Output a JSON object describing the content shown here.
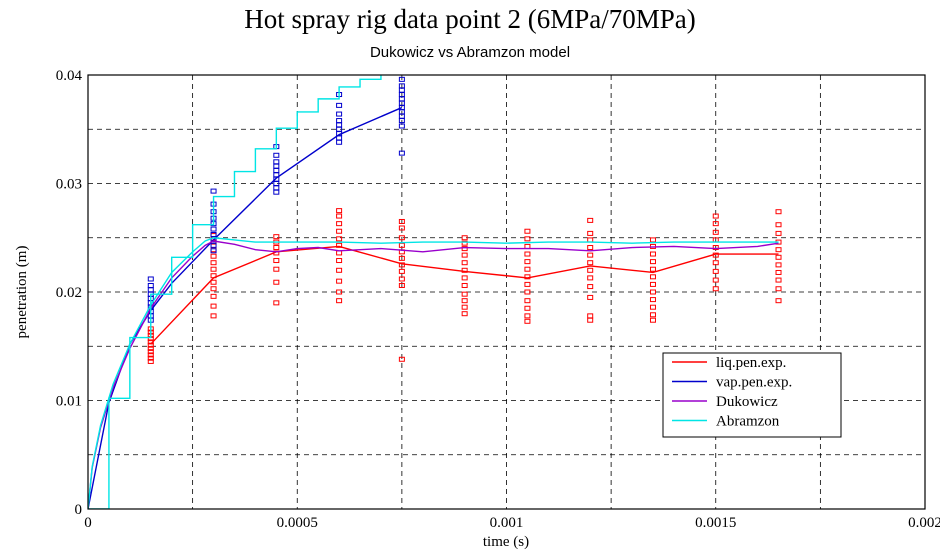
{
  "chart_data": {
    "type": "line",
    "title": "Hot spray rig data point 2 (6MPa/70MPa)",
    "subtitle": "Dukowicz vs Abramzon model",
    "xlabel": "time (s)",
    "ylabel": "penetration (m)",
    "xlim": [
      0,
      0.002
    ],
    "ylim": [
      0,
      0.04
    ],
    "xticks": [
      0,
      0.0005,
      0.001,
      0.0015,
      0.002
    ],
    "xtick_labels": [
      "0",
      "0.0005",
      "0.001",
      "0.0015",
      "0.002"
    ],
    "yticks": [
      0,
      0.01,
      0.02,
      0.03,
      0.04
    ],
    "ytick_labels": [
      "0",
      "0.01",
      "0.02",
      "0.03",
      "0.04"
    ],
    "grid": true,
    "legend_position": "lower-right",
    "series": [
      {
        "name": "liq.pen.exp.",
        "color": "#ff0000",
        "style": "line+square-markers",
        "x": [
          0.00015,
          0.0003,
          0.00045,
          0.0006,
          0.00075,
          0.0009,
          0.00105,
          0.0012,
          0.00135,
          0.0015,
          0.00165
        ],
        "y": [
          0.0152,
          0.0213,
          0.0237,
          0.0242,
          0.0226,
          0.0219,
          0.0213,
          0.0224,
          0.0218,
          0.0235,
          0.0235
        ],
        "scatter": [
          [
            0.00015,
            [
              0.0136,
              0.0139,
              0.0142,
              0.0145,
              0.0148,
              0.0151,
              0.0154,
              0.0157,
              0.016,
              0.0163,
              0.0166
            ]
          ],
          [
            0.0003,
            [
              0.0178,
              0.0187,
              0.0196,
              0.0203,
              0.0209,
              0.0215,
              0.0221,
              0.0227,
              0.0233,
              0.0239,
              0.0246,
              0.0252
            ]
          ],
          [
            0.00045,
            [
              0.019,
              0.0209,
              0.0221,
              0.0229,
              0.0236,
              0.0241,
              0.0246,
              0.0251
            ]
          ],
          [
            0.0006,
            [
              0.0192,
              0.02,
              0.021,
              0.022,
              0.0229,
              0.0236,
              0.0243,
              0.0249,
              0.0256,
              0.0263,
              0.027,
              0.0275
            ]
          ],
          [
            0.00075,
            [
              0.0138,
              0.0206,
              0.0212,
              0.0219,
              0.0225,
              0.0231,
              0.0237,
              0.0243,
              0.025,
              0.0259,
              0.0265
            ]
          ],
          [
            0.0009,
            [
              0.018,
              0.0186,
              0.0192,
              0.0198,
              0.0206,
              0.0213,
              0.022,
              0.0227,
              0.0234,
              0.024,
              0.0245,
              0.025
            ]
          ],
          [
            0.00105,
            [
              0.0173,
              0.0178,
              0.0185,
              0.0192,
              0.02,
              0.0207,
              0.0214,
              0.0221,
              0.0228,
              0.0235,
              0.0242,
              0.0249,
              0.0256
            ]
          ],
          [
            0.0012,
            [
              0.0174,
              0.0178,
              0.0195,
              0.0205,
              0.0213,
              0.022,
              0.0227,
              0.0234,
              0.0241,
              0.0248,
              0.0254,
              0.0266
            ]
          ],
          [
            0.00135,
            [
              0.0174,
              0.0179,
              0.0186,
              0.0193,
              0.02,
              0.0207,
              0.0214,
              0.0221,
              0.0228,
              0.0235,
              0.0242,
              0.0248
            ]
          ],
          [
            0.0015,
            [
              0.0203,
              0.0211,
              0.0219,
              0.0227,
              0.0234,
              0.0241,
              0.0248,
              0.0255,
              0.0263,
              0.027
            ]
          ],
          [
            0.00165,
            [
              0.0192,
              0.0203,
              0.0211,
              0.0218,
              0.0225,
              0.0232,
              0.0239,
              0.0246,
              0.0254,
              0.0262,
              0.0274
            ]
          ]
        ]
      },
      {
        "name": "vap.pen.exp.",
        "color": "#0000cc",
        "style": "line+square-markers",
        "x": [
          0,
          5e-05,
          0.0001,
          0.00015,
          0.0002,
          0.0003,
          0.00045,
          0.0006,
          0.00075
        ],
        "y": [
          0,
          0.0098,
          0.0152,
          0.0183,
          0.0208,
          0.0248,
          0.0305,
          0.0345,
          0.037
        ],
        "scatter": [
          [
            0.00015,
            [
              0.0174,
              0.0178,
              0.0182,
              0.0186,
              0.019,
              0.0194,
              0.0198,
              0.0202,
              0.0206,
              0.0212
            ]
          ],
          [
            0.0003,
            [
              0.0238,
              0.0243,
              0.0248,
              0.0253,
              0.0258,
              0.0263,
              0.0268,
              0.0274,
              0.0281,
              0.0293
            ]
          ],
          [
            0.00045,
            [
              0.0292,
              0.0296,
              0.03,
              0.0304,
              0.0308,
              0.0312,
              0.0316,
              0.032,
              0.0326,
              0.0334
            ]
          ],
          [
            0.0006,
            [
              0.0338,
              0.0342,
              0.0346,
              0.035,
              0.0354,
              0.0358,
              0.0364,
              0.0372,
              0.0382
            ]
          ],
          [
            0.00075,
            [
              0.0328,
              0.0353,
              0.0358,
              0.0362,
              0.0366,
              0.037,
              0.0374,
              0.0378,
              0.0382,
              0.0386,
              0.039,
              0.0396
            ]
          ]
        ]
      },
      {
        "name": "Dukowicz",
        "color": "#9900cc",
        "style": "line",
        "x": [
          0,
          1e-05,
          3e-05,
          6e-05,
          0.0001,
          0.00015,
          0.0002,
          0.00025,
          0.00028,
          0.0003,
          0.00035,
          0.0004,
          0.00045,
          0.0005,
          0.00055,
          0.0006,
          0.0007,
          0.0008,
          0.0009,
          0.001,
          0.0011,
          0.0012,
          0.0013,
          0.0014,
          0.0015,
          0.0016,
          0.00165
        ],
        "y": [
          0,
          0.0038,
          0.0075,
          0.0112,
          0.0148,
          0.0185,
          0.0213,
          0.0233,
          0.0243,
          0.0247,
          0.0244,
          0.0239,
          0.0237,
          0.024,
          0.0241,
          0.0238,
          0.024,
          0.0237,
          0.0241,
          0.024,
          0.024,
          0.0238,
          0.0241,
          0.0242,
          0.024,
          0.0242,
          0.0245
        ]
      },
      {
        "name": "Abramzon",
        "color": "#00e5e5",
        "style": "line",
        "x": [
          0,
          1e-05,
          3e-05,
          6e-05,
          0.0001,
          0.00015,
          0.0002,
          0.00025,
          0.00028,
          0.0003,
          0.00035,
          0.0004,
          0.0005,
          0.0006,
          0.0007,
          0.0008,
          0.0009,
          0.001,
          0.0011,
          0.0012,
          0.0013,
          0.0014,
          0.0015,
          0.0016,
          0.00165
        ],
        "y": [
          0,
          0.0039,
          0.0077,
          0.0115,
          0.0152,
          0.0188,
          0.0218,
          0.0237,
          0.0247,
          0.025,
          0.0248,
          0.0246,
          0.0246,
          0.0246,
          0.0245,
          0.0246,
          0.0246,
          0.0245,
          0.0246,
          0.0246,
          0.0245,
          0.0246,
          0.0246,
          0.0246,
          0.0246
        ]
      },
      {
        "name": "",
        "color": "#00e5e5",
        "style": "step",
        "x": [
          0,
          5e-05,
          0.0001,
          0.00015,
          0.0002,
          0.00025,
          0.0003,
          0.00035,
          0.0004,
          0.00045,
          0.0005,
          0.00055,
          0.0006,
          0.00065,
          0.0007,
          0.00075
        ],
        "y": [
          0,
          0.0102,
          0.0158,
          0.0198,
          0.0232,
          0.0262,
          0.0288,
          0.0311,
          0.0332,
          0.0351,
          0.0366,
          0.0378,
          0.0389,
          0.0396,
          0.0401,
          0.0401
        ]
      }
    ]
  }
}
